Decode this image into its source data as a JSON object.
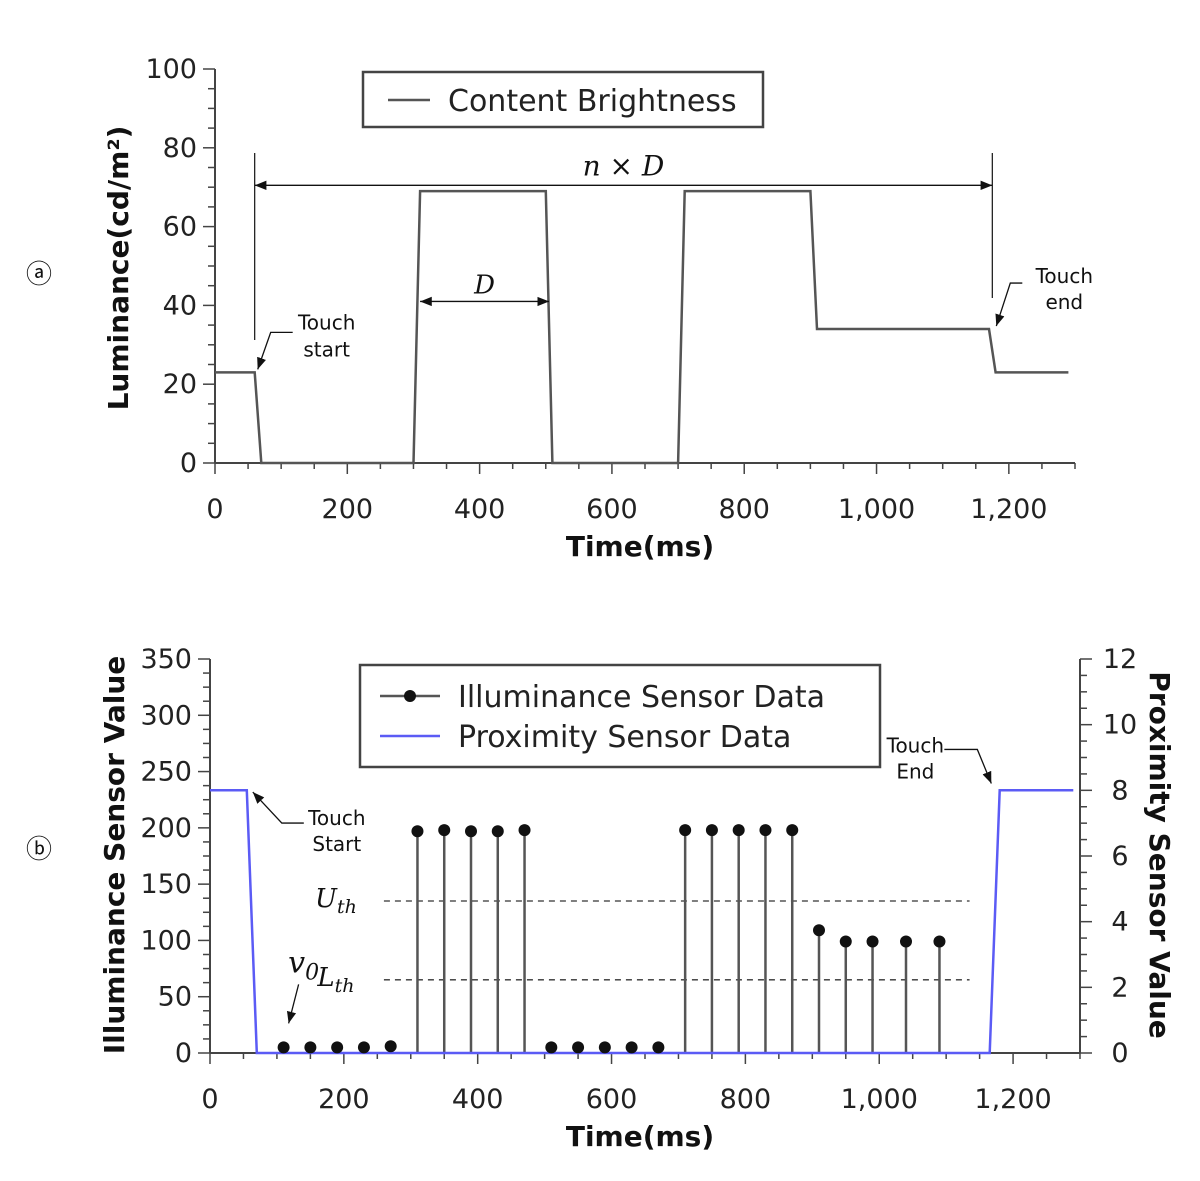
{
  "chart_data": [
    {
      "type": "line",
      "panel_label": "ⓐ",
      "title": "",
      "xlabel": "Time(ms)",
      "ylabel": "Luminance(cd/m²)",
      "xlim": [
        0,
        1300
      ],
      "ylim": [
        0,
        100
      ],
      "x_ticks": [
        0,
        200,
        400,
        600,
        800,
        1000,
        1200
      ],
      "x_tick_labels": [
        "0",
        "200",
        "400",
        "600",
        "800",
        "1,000",
        "1,200"
      ],
      "y_ticks": [
        0,
        20,
        40,
        60,
        80,
        100
      ],
      "y_tick_labels": [
        "0",
        "20",
        "40",
        "60",
        "80",
        "100"
      ],
      "legend": {
        "position": "top-center",
        "entries": [
          "Content Brightness"
        ]
      },
      "series": [
        {
          "name": "Content Brightness",
          "color": "#555555",
          "x": [
            0,
            60,
            70,
            300,
            310,
            500,
            510,
            700,
            710,
            900,
            910,
            1170,
            1180,
            1290
          ],
          "y": [
            23,
            23,
            0,
            0,
            69,
            69,
            0,
            0,
            69,
            69,
            34,
            34,
            23,
            23
          ]
        }
      ],
      "annotations": {
        "span_n": {
          "label": "n × D",
          "x_start": 60,
          "x_end": 1175,
          "y": 72
        },
        "span_d": {
          "label": "D",
          "x_start": 310,
          "x_end": 505,
          "y": 41
        },
        "touch_start": {
          "line1": "Touch",
          "line2": "start",
          "x": 60,
          "y": 23
        },
        "touch_end": {
          "line1": "Touch",
          "line2": "end",
          "x": 1175,
          "y": 34
        }
      }
    },
    {
      "type": "line",
      "panel_label": "ⓑ",
      "title": "",
      "xlabel": "Time(ms)",
      "ylabel": "Illuminance Sensor Value",
      "y2label": "Proximity Sensor Value",
      "xlim": [
        0,
        1300
      ],
      "ylim": [
        0,
        350
      ],
      "y2lim": [
        0,
        12
      ],
      "x_ticks": [
        0,
        200,
        400,
        600,
        800,
        1000,
        1200
      ],
      "x_tick_labels": [
        "0",
        "200",
        "400",
        "600",
        "800",
        "1,000",
        "1,200"
      ],
      "y_ticks": [
        0,
        50,
        100,
        150,
        200,
        250,
        300,
        350
      ],
      "y_tick_labels": [
        "0",
        "50",
        "100",
        "150",
        "200",
        "250",
        "300",
        "350"
      ],
      "y2_ticks": [
        0,
        2,
        4,
        6,
        8,
        10,
        12
      ],
      "y2_tick_labels": [
        "0",
        "2",
        "4",
        "6",
        "8",
        "10",
        "12"
      ],
      "legend": {
        "position": "top-center",
        "entries": [
          "Illuminance Sensor Data",
          "Proximity Sensor Data"
        ]
      },
      "series": [
        {
          "name": "Illuminance Sensor Data",
          "style": "stem",
          "color": "#555555",
          "x": [
            110,
            150,
            190,
            230,
            270,
            310,
            350,
            390,
            430,
            470,
            510,
            550,
            590,
            630,
            670,
            710,
            750,
            790,
            830,
            870,
            910,
            950,
            990,
            1040,
            1090
          ],
          "y": [
            5,
            5,
            5,
            5,
            6,
            197,
            198,
            197,
            197,
            198,
            5,
            5,
            5,
            5,
            5,
            198,
            198,
            198,
            198,
            198,
            109,
            99,
            99,
            99,
            99
          ]
        },
        {
          "name": "Proximity Sensor Data",
          "axis": "right",
          "color": "#5b5bf5",
          "x": [
            0,
            55,
            70,
            1165,
            1180,
            1290
          ],
          "y": [
            8,
            8,
            0,
            0,
            8,
            8
          ]
        }
      ],
      "thresholds": [
        {
          "label_main": "U",
          "label_sub": "th",
          "y": 135,
          "x_start": 230,
          "x_end": 1135
        },
        {
          "label_main": "L",
          "label_sub": "th",
          "y": 65,
          "x_start": 230,
          "x_end": 1135
        }
      ],
      "annotations": {
        "v0": {
          "label_main": "v",
          "label_sub": "0",
          "x": 110,
          "y": 5
        },
        "touch_start": {
          "line1": "Touch",
          "line2": "Start",
          "x": 58,
          "y": 230
        },
        "touch_end": {
          "line1": "Touch",
          "line2": "End",
          "x": 1172,
          "y": 235
        }
      }
    }
  ]
}
